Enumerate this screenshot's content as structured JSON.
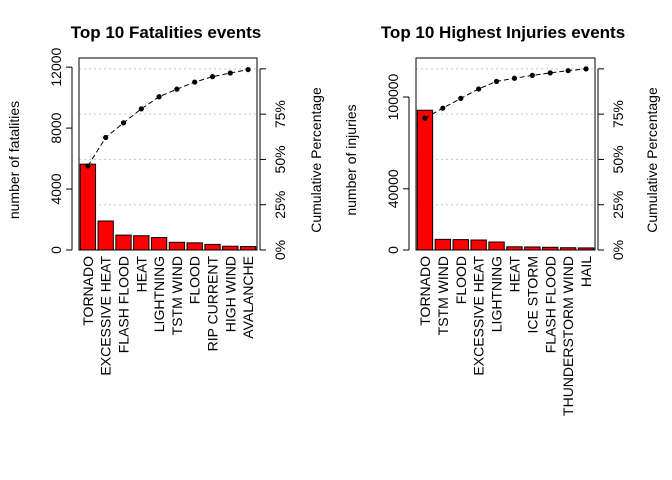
{
  "chart_data": [
    {
      "type": "bar",
      "title": "Top 10 Fatalities events",
      "ylabel": "number of fatalities",
      "y2label": "Cumulative Percentage",
      "categories": [
        "TORNADO",
        "EXCESSIVE HEAT",
        "FLASH FLOOD",
        "HEAT",
        "LIGHTNING",
        "TSTM WIND",
        "FLOOD",
        "RIP CURRENT",
        "HIGH WIND",
        "AVALANCHE"
      ],
      "values": [
        5633,
        1903,
        978,
        937,
        816,
        504,
        470,
        368,
        248,
        224
      ],
      "cumulative_percent": [
        46.4,
        62.1,
        70.2,
        77.9,
        84.6,
        88.8,
        92.7,
        95.7,
        97.7,
        99.6
      ],
      "yticks": [
        0,
        4000,
        8000,
        12000
      ],
      "ytick_labels": [
        "0",
        "4000",
        "8000",
        "12000"
      ],
      "y2ticks": [
        "0%",
        "25%",
        "50%",
        "75%"
      ],
      "ylim": [
        0,
        12600
      ],
      "grid": true,
      "bar_color": "#ff0000"
    },
    {
      "type": "bar",
      "title": "Top 10 Highest Injuries events",
      "ylabel": "number of injuries",
      "y2label": "Cumulative Percentage",
      "categories": [
        "TORNADO",
        "TSTM WIND",
        "FLOOD",
        "EXCESSIVE HEAT",
        "LIGHTNING",
        "HEAT",
        "ICE STORM",
        "FLASH FLOOD",
        "THUNDERSTORM WIND",
        "HAIL"
      ],
      "values": [
        91346,
        6957,
        6789,
        6525,
        5230,
        2100,
        1975,
        1777,
        1488,
        1361
      ],
      "cumulative_percent": [
        72.8,
        78.3,
        83.7,
        88.9,
        93.1,
        94.8,
        96.4,
        97.8,
        99.0,
        100.0
      ],
      "yticks": [
        0,
        40000,
        100000
      ],
      "ytick_labels": [
        "0",
        "40000",
        "100000"
      ],
      "y2ticks": [
        "0%",
        "25%",
        "50%",
        "75%"
      ],
      "ylim": [
        0,
        125500
      ],
      "grid": true,
      "bar_color": "#ff0000"
    }
  ]
}
